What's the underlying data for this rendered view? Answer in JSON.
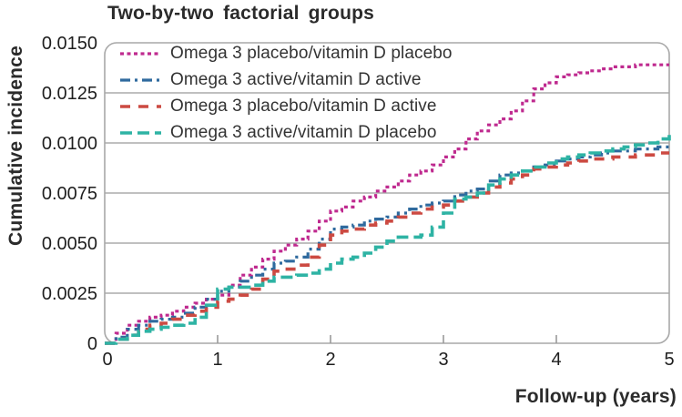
{
  "figure": {
    "title": "Two-by-two factorial groups",
    "y_axis_label": "Cumulative incidence",
    "x_axis_label": "Follow-up (years)"
  },
  "chart_data": {
    "type": "line",
    "subtype": "step-function-cumulative-incidence",
    "title": "Two-by-two factorial groups",
    "xlabel": "Follow-up (years)",
    "ylabel": "Cumulative incidence",
    "xlim": [
      0,
      5
    ],
    "ylim": [
      0,
      0.015
    ],
    "grid": "horizontal",
    "legend_position": "top-left-inside",
    "frame_color": "#a8a8a8",
    "grid_color": "#9a9a9a",
    "x_ticks": [
      0,
      1,
      2,
      3,
      4,
      5
    ],
    "y_ticks": [
      {
        "v": 0,
        "label": "0"
      },
      {
        "v": 0.0025,
        "label": "0.0025"
      },
      {
        "v": 0.005,
        "label": "0.0050"
      },
      {
        "v": 0.0075,
        "label": "0.0075"
      },
      {
        "v": 0.01,
        "label": "0.0100"
      },
      {
        "v": 0.0125,
        "label": "0.0125"
      },
      {
        "v": 0.015,
        "label": "0.0150"
      }
    ],
    "series": [
      {
        "name": "Omega 3 placebo/vitamin D placebo",
        "color": "#bf2a8f",
        "dash": "4 3.5",
        "line_width": 3.2,
        "points": [
          [
            0,
            0
          ],
          [
            0.1,
            0.0005
          ],
          [
            0.2,
            0.0009
          ],
          [
            0.3,
            0.0011
          ],
          [
            0.4,
            0.0013
          ],
          [
            0.5,
            0.0014
          ],
          [
            0.6,
            0.0016
          ],
          [
            0.7,
            0.0018
          ],
          [
            0.8,
            0.002
          ],
          [
            0.9,
            0.0022
          ],
          [
            1,
            0.0024
          ],
          [
            1.1,
            0.0029
          ],
          [
            1.2,
            0.0034
          ],
          [
            1.3,
            0.0038
          ],
          [
            1.4,
            0.0042
          ],
          [
            1.5,
            0.0046
          ],
          [
            1.6,
            0.0049
          ],
          [
            1.7,
            0.0052
          ],
          [
            1.8,
            0.0056
          ],
          [
            1.9,
            0.0061
          ],
          [
            2,
            0.0066
          ],
          [
            2.1,
            0.0068
          ],
          [
            2.2,
            0.0071
          ],
          [
            2.3,
            0.0073
          ],
          [
            2.4,
            0.0076
          ],
          [
            2.5,
            0.0078
          ],
          [
            2.6,
            0.0081
          ],
          [
            2.7,
            0.0084
          ],
          [
            2.8,
            0.0086
          ],
          [
            2.9,
            0.0089
          ],
          [
            3,
            0.0093
          ],
          [
            3.1,
            0.0097
          ],
          [
            3.2,
            0.0102
          ],
          [
            3.3,
            0.0106
          ],
          [
            3.4,
            0.0109
          ],
          [
            3.5,
            0.0112
          ],
          [
            3.6,
            0.0116
          ],
          [
            3.7,
            0.0121
          ],
          [
            3.8,
            0.0127
          ],
          [
            3.9,
            0.013
          ],
          [
            4,
            0.0133
          ],
          [
            4.1,
            0.0134
          ],
          [
            4.2,
            0.0135
          ],
          [
            4.3,
            0.0136
          ],
          [
            4.4,
            0.0137
          ],
          [
            4.5,
            0.0138
          ],
          [
            4.7,
            0.0139
          ],
          [
            5,
            0.0139
          ]
        ]
      },
      {
        "name": "Omega 3 active/vitamin D active",
        "color": "#2f6a9e",
        "dash": "11 5 3 5",
        "line_width": 3.2,
        "points": [
          [
            0,
            0
          ],
          [
            0.1,
            0.0003
          ],
          [
            0.2,
            0.0007
          ],
          [
            0.3,
            0.0009
          ],
          [
            0.4,
            0.0011
          ],
          [
            0.5,
            0.0012
          ],
          [
            0.6,
            0.0013
          ],
          [
            0.7,
            0.0015
          ],
          [
            0.8,
            0.0018
          ],
          [
            0.9,
            0.0022
          ],
          [
            1,
            0.0026
          ],
          [
            1.1,
            0.0028
          ],
          [
            1.2,
            0.0031
          ],
          [
            1.3,
            0.0034
          ],
          [
            1.4,
            0.0037
          ],
          [
            1.5,
            0.004
          ],
          [
            1.6,
            0.0041
          ],
          [
            1.7,
            0.0043
          ],
          [
            1.8,
            0.0047
          ],
          [
            1.9,
            0.0052
          ],
          [
            2,
            0.0057
          ],
          [
            2.1,
            0.0058
          ],
          [
            2.2,
            0.0059
          ],
          [
            2.3,
            0.0061
          ],
          [
            2.4,
            0.0062
          ],
          [
            2.5,
            0.0063
          ],
          [
            2.6,
            0.0065
          ],
          [
            2.7,
            0.0067
          ],
          [
            2.8,
            0.0069
          ],
          [
            2.9,
            0.007
          ],
          [
            3,
            0.0071
          ],
          [
            3.1,
            0.0074
          ],
          [
            3.2,
            0.0076
          ],
          [
            3.3,
            0.0077
          ],
          [
            3.4,
            0.0081
          ],
          [
            3.5,
            0.0084
          ],
          [
            3.6,
            0.0085
          ],
          [
            3.7,
            0.0086
          ],
          [
            3.8,
            0.0088
          ],
          [
            3.9,
            0.0089
          ],
          [
            4,
            0.0091
          ],
          [
            4.1,
            0.0092
          ],
          [
            4.2,
            0.0093
          ],
          [
            4.3,
            0.0094
          ],
          [
            4.4,
            0.0095
          ],
          [
            4.5,
            0.0096
          ],
          [
            4.7,
            0.0097
          ],
          [
            4.9,
            0.0098
          ],
          [
            5,
            0.0098
          ]
        ]
      },
      {
        "name": "Omega 3 placebo/vitamin D active",
        "color": "#cc4a42",
        "dash": "11 9",
        "line_width": 3.6,
        "points": [
          [
            0,
            0
          ],
          [
            0.1,
            0.0002
          ],
          [
            0.2,
            0.0004
          ],
          [
            0.3,
            0.0007
          ],
          [
            0.4,
            0.0009
          ],
          [
            0.5,
            0.001
          ],
          [
            0.6,
            0.0012
          ],
          [
            0.7,
            0.0014
          ],
          [
            0.8,
            0.0016
          ],
          [
            0.9,
            0.0018
          ],
          [
            1,
            0.0021
          ],
          [
            1.1,
            0.0022
          ],
          [
            1.2,
            0.0024
          ],
          [
            1.3,
            0.0027
          ],
          [
            1.4,
            0.0032
          ],
          [
            1.5,
            0.0036
          ],
          [
            1.6,
            0.0037
          ],
          [
            1.7,
            0.0039
          ],
          [
            1.8,
            0.0043
          ],
          [
            1.9,
            0.0049
          ],
          [
            2,
            0.0054
          ],
          [
            2.1,
            0.0056
          ],
          [
            2.2,
            0.0057
          ],
          [
            2.3,
            0.0059
          ],
          [
            2.4,
            0.006
          ],
          [
            2.5,
            0.0061
          ],
          [
            2.6,
            0.0063
          ],
          [
            2.7,
            0.0065
          ],
          [
            2.8,
            0.0067
          ],
          [
            2.9,
            0.0068
          ],
          [
            3,
            0.0069
          ],
          [
            3.1,
            0.0071
          ],
          [
            3.2,
            0.0073
          ],
          [
            3.3,
            0.0075
          ],
          [
            3.4,
            0.0078
          ],
          [
            3.5,
            0.008
          ],
          [
            3.6,
            0.0082
          ],
          [
            3.7,
            0.0084
          ],
          [
            3.8,
            0.0087
          ],
          [
            3.9,
            0.0088
          ],
          [
            4,
            0.0089
          ],
          [
            4.1,
            0.009
          ],
          [
            4.2,
            0.0091
          ],
          [
            4.3,
            0.0092
          ],
          [
            4.5,
            0.0093
          ],
          [
            4.7,
            0.0094
          ],
          [
            4.9,
            0.0095
          ],
          [
            5,
            0.0095
          ]
        ]
      },
      {
        "name": "Omega 3 active/vitamin D placebo",
        "color": "#2eb3a4",
        "dash": "13 6",
        "line_width": 3.6,
        "points": [
          [
            0,
            0
          ],
          [
            0.1,
            0.0002
          ],
          [
            0.2,
            0.0004
          ],
          [
            0.3,
            0.0006
          ],
          [
            0.4,
            0.0007
          ],
          [
            0.5,
            0.0008
          ],
          [
            0.6,
            0.0009
          ],
          [
            0.7,
            0.001
          ],
          [
            0.8,
            0.0013
          ],
          [
            0.9,
            0.0019
          ],
          [
            1,
            0.0027
          ],
          [
            1.1,
            0.0028
          ],
          [
            1.3,
            0.0029
          ],
          [
            1.4,
            0.0031
          ],
          [
            1.5,
            0.0033
          ],
          [
            1.7,
            0.0034
          ],
          [
            1.8,
            0.0035
          ],
          [
            1.9,
            0.0037
          ],
          [
            2,
            0.004
          ],
          [
            2.1,
            0.0042
          ],
          [
            2.2,
            0.0043
          ],
          [
            2.3,
            0.0045
          ],
          [
            2.4,
            0.0048
          ],
          [
            2.5,
            0.0051
          ],
          [
            2.6,
            0.0053
          ],
          [
            2.8,
            0.0054
          ],
          [
            2.9,
            0.0058
          ],
          [
            3,
            0.0065
          ],
          [
            3.1,
            0.0072
          ],
          [
            3.2,
            0.0073
          ],
          [
            3.3,
            0.0075
          ],
          [
            3.4,
            0.0079
          ],
          [
            3.5,
            0.0082
          ],
          [
            3.6,
            0.0084
          ],
          [
            3.7,
            0.0086
          ],
          [
            3.8,
            0.0088
          ],
          [
            3.9,
            0.009
          ],
          [
            4,
            0.0092
          ],
          [
            4.1,
            0.0093
          ],
          [
            4.2,
            0.0094
          ],
          [
            4.3,
            0.0095
          ],
          [
            4.4,
            0.0096
          ],
          [
            4.5,
            0.0097
          ],
          [
            4.6,
            0.0098
          ],
          [
            4.7,
            0.0099
          ],
          [
            4.8,
            0.01
          ],
          [
            4.9,
            0.0102
          ],
          [
            5,
            0.0104
          ]
        ]
      }
    ]
  }
}
